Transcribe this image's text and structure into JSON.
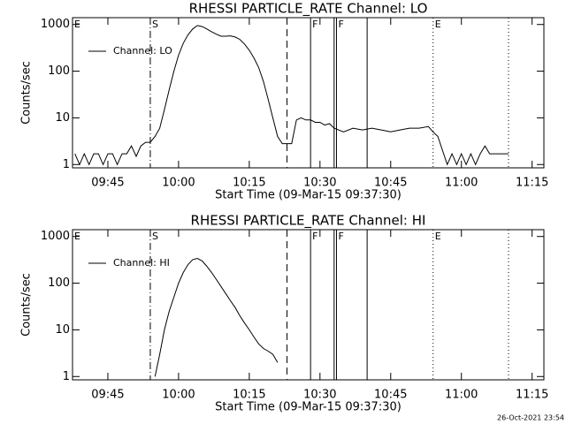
{
  "chart_data": [
    {
      "type": "line",
      "title": "RHESSI PARTICLE_RATE Channel: LO",
      "xlabel": "Start Time (09-Mar-15 09:37:30)",
      "ylabel": "Counts/sec",
      "log_y": true,
      "xlim": [
        "09:37:30",
        "11:17:30"
      ],
      "xticks": [
        "09:45",
        "10:00",
        "10:15",
        "10:30",
        "10:45",
        "11:00",
        "11:15"
      ],
      "ylim": [
        0.85,
        1400
      ],
      "yticks": [
        1,
        10,
        100,
        1000
      ],
      "legend": "upper-left",
      "series": [
        {
          "name": "Channel: LO",
          "color": "#000000",
          "x": [
            "09:38",
            "09:39",
            "09:40",
            "09:41",
            "09:42",
            "09:43",
            "09:44",
            "09:45",
            "09:46",
            "09:47",
            "09:48",
            "09:49",
            "09:50",
            "09:51",
            "09:52",
            "09:53",
            "09:54",
            "09:55",
            "09:56",
            "09:57",
            "09:58",
            "09:59",
            "10:00",
            "10:01",
            "10:02",
            "10:03",
            "10:04",
            "10:05",
            "10:06",
            "10:07",
            "10:08",
            "10:09",
            "10:10",
            "10:11",
            "10:12",
            "10:13",
            "10:14",
            "10:15",
            "10:16",
            "10:17",
            "10:18",
            "10:19",
            "10:20",
            "10:21",
            "10:22",
            "10:23",
            "10:24",
            "10:25",
            "10:26",
            "10:27",
            "10:28",
            "10:29",
            "10:30",
            "10:31",
            "10:32",
            "10:33",
            "10:35",
            "10:37",
            "10:39",
            "10:41",
            "10:43",
            "10:45",
            "10:47",
            "10:49",
            "10:51",
            "10:53",
            "10:54",
            "10:55",
            "10:56",
            "10:57",
            "10:58",
            "10:59",
            "11:00",
            "11:01",
            "11:02",
            "11:03",
            "11:04",
            "11:05",
            "11:06",
            "11:07",
            "11:08",
            "11:10"
          ],
          "values": [
            1.7,
            1,
            1.7,
            1,
            1.7,
            1.7,
            1,
            1.7,
            1.7,
            1,
            1.7,
            1.7,
            2.5,
            1.5,
            2.5,
            3,
            3,
            4,
            6,
            15,
            40,
            100,
            220,
            400,
            600,
            800,
            950,
            900,
            800,
            700,
            620,
            560,
            560,
            570,
            540,
            480,
            380,
            280,
            190,
            120,
            60,
            25,
            10,
            4,
            2.8,
            2.8,
            2.8,
            9,
            10,
            9,
            9,
            8,
            8,
            7,
            7.5,
            6,
            5,
            6,
            5.5,
            6,
            5.5,
            5,
            5.5,
            6,
            6,
            6.5,
            5,
            4,
            2,
            1,
            1.7,
            1,
            1.7,
            1,
            1.7,
            1,
            1.7,
            2.5,
            1.7,
            1.7,
            1.7,
            1.7
          ]
        }
      ],
      "markers": [
        {
          "x": "09:37:30",
          "label": "E"
        },
        {
          "x": "09:54",
          "style": "dashdot",
          "label": "S"
        },
        {
          "x": "10:23",
          "style": "dashed"
        },
        {
          "x": "10:28",
          "style": "solid",
          "label": "F"
        },
        {
          "x": "10:33",
          "style": "solid"
        },
        {
          "x": "10:33:30",
          "style": "solid",
          "label": "F"
        },
        {
          "x": "10:40",
          "style": "solid"
        },
        {
          "x": "10:54",
          "style": "dotted",
          "label": "E"
        },
        {
          "x": "11:10",
          "style": "dotted"
        }
      ]
    },
    {
      "type": "line",
      "title": "RHESSI PARTICLE_RATE Channel: HI",
      "xlabel": "Start Time (09-Mar-15 09:37:30)",
      "ylabel": "Counts/sec",
      "log_y": true,
      "xlim": [
        "09:37:30",
        "11:17:30"
      ],
      "xticks": [
        "09:45",
        "10:00",
        "10:15",
        "10:30",
        "10:45",
        "11:00",
        "11:15"
      ],
      "ylim": [
        0.85,
        1400
      ],
      "yticks": [
        1,
        10,
        100,
        1000
      ],
      "legend": "upper-left",
      "series": [
        {
          "name": "Channel: HI",
          "color": "#000000",
          "x": [
            "09:55",
            "09:56",
            "09:57",
            "09:58",
            "09:59",
            "10:00",
            "10:01",
            "10:02",
            "10:03",
            "10:04",
            "10:05",
            "10:06",
            "10:07",
            "10:08",
            "10:09",
            "10:10",
            "10:11",
            "10:12",
            "10:13",
            "10:14",
            "10:15",
            "10:16",
            "10:17",
            "10:18",
            "10:19",
            "10:20",
            "10:21"
          ],
          "values": [
            1,
            3,
            10,
            25,
            50,
            100,
            170,
            250,
            320,
            340,
            300,
            230,
            170,
            120,
            85,
            60,
            42,
            30,
            20,
            14,
            10,
            7,
            5,
            4,
            3.5,
            3,
            2
          ]
        }
      ],
      "markers": [
        {
          "x": "09:37:30",
          "label": "E"
        },
        {
          "x": "09:54",
          "style": "dashdot",
          "label": "S"
        },
        {
          "x": "10:23",
          "style": "dashed"
        },
        {
          "x": "10:28",
          "style": "solid",
          "label": "F"
        },
        {
          "x": "10:33",
          "style": "solid"
        },
        {
          "x": "10:33:30",
          "style": "solid",
          "label": "F"
        },
        {
          "x": "10:40",
          "style": "solid"
        },
        {
          "x": "10:54",
          "style": "dotted",
          "label": "E"
        },
        {
          "x": "11:10",
          "style": "dotted"
        }
      ]
    }
  ],
  "footer": "26-Oct-2021 23:54"
}
